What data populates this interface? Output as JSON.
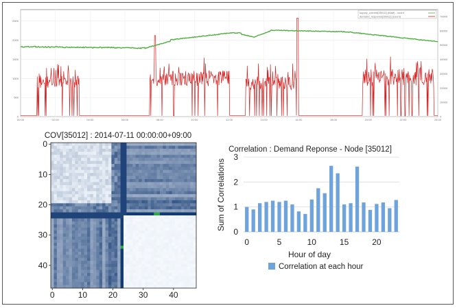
{
  "chart_data": [
    {
      "type": "line",
      "title": "",
      "legend": [
        "supply_current[35012] (Watt) - count",
        "demand_response[35012] (count)"
      ],
      "colors": {
        "supply": "#4caf3c",
        "demand": "#d42020"
      },
      "y_ticks": [
        "0",
        "500",
        "1000",
        "1500",
        "2000",
        "2500"
      ],
      "y_right_ticks": [
        "0",
        "10000",
        "20000",
        "30000",
        "40000",
        "50000",
        "60000",
        "70000"
      ],
      "x_ticks": [
        "00:00",
        "02:00",
        "04:00",
        "06:00",
        "08:00",
        "10:00",
        "12:00",
        "14:00",
        "16:00",
        "18:00",
        "20:00",
        "22:00",
        "24:00"
      ],
      "ylim": [
        0,
        2800
      ]
    },
    {
      "type": "heatmap",
      "title": "COV[35012] : 2014-07-11 00:00:00+09:00",
      "size": 48,
      "x_ticks": [
        "0",
        "10",
        "20",
        "30",
        "40"
      ],
      "y_ticks": [
        "0",
        "10",
        "20",
        "30",
        "40"
      ]
    },
    {
      "type": "bar",
      "title": "Correlation : Demand Reponse - Node [35012]",
      "xlabel": "Hour of day",
      "ylabel": "Sum of Correlations",
      "x_ticks": [
        "0",
        "5",
        "10",
        "15",
        "20"
      ],
      "y_ticks": [
        "0",
        "1",
        "2",
        "3"
      ],
      "ylim": [
        0,
        3
      ],
      "categories": [
        0,
        1,
        2,
        3,
        4,
        5,
        6,
        7,
        8,
        9,
        10,
        11,
        12,
        13,
        14,
        15,
        16,
        17,
        18,
        19,
        20,
        21,
        22,
        23
      ],
      "series": [
        {
          "name": "Correlation at each hour",
          "values": [
            1.0,
            0.9,
            1.15,
            1.2,
            1.25,
            1.2,
            1.25,
            1.1,
            0.82,
            0.72,
            1.3,
            1.75,
            1.55,
            2.65,
            2.35,
            1.1,
            1.15,
            2.62,
            1.18,
            0.88,
            1.12,
            1.18,
            0.95,
            1.28
          ]
        }
      ],
      "color": "#6fa3dc"
    }
  ]
}
